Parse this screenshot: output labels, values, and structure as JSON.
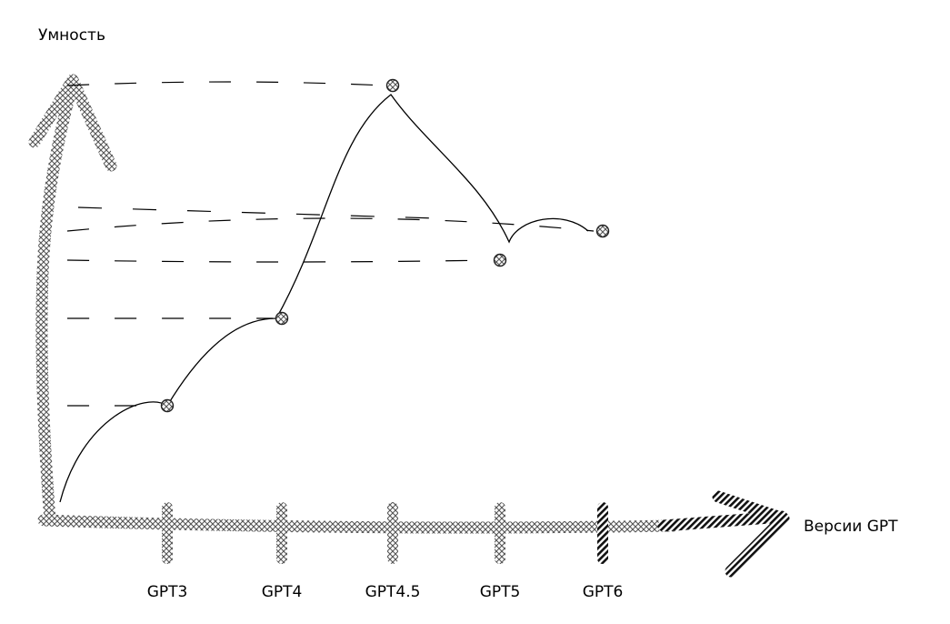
{
  "chart_data": {
    "type": "line",
    "title": "",
    "ylabel": "Умность",
    "xlabel": "Версии GPT",
    "categories": [
      "GPT3",
      "GPT4",
      "GPT4.5",
      "GPT5",
      "GPT6"
    ],
    "series": [
      {
        "values": [
          2,
          3.5,
          7.5,
          4.5,
          5
        ]
      }
    ],
    "ylim": [
      0,
      8
    ],
    "grid": false,
    "legend": "none",
    "colors": {
      "axis": "#9a9a9a",
      "axis_tip": "#2a2a2a",
      "line": "#000000",
      "guide": "#000000"
    }
  }
}
